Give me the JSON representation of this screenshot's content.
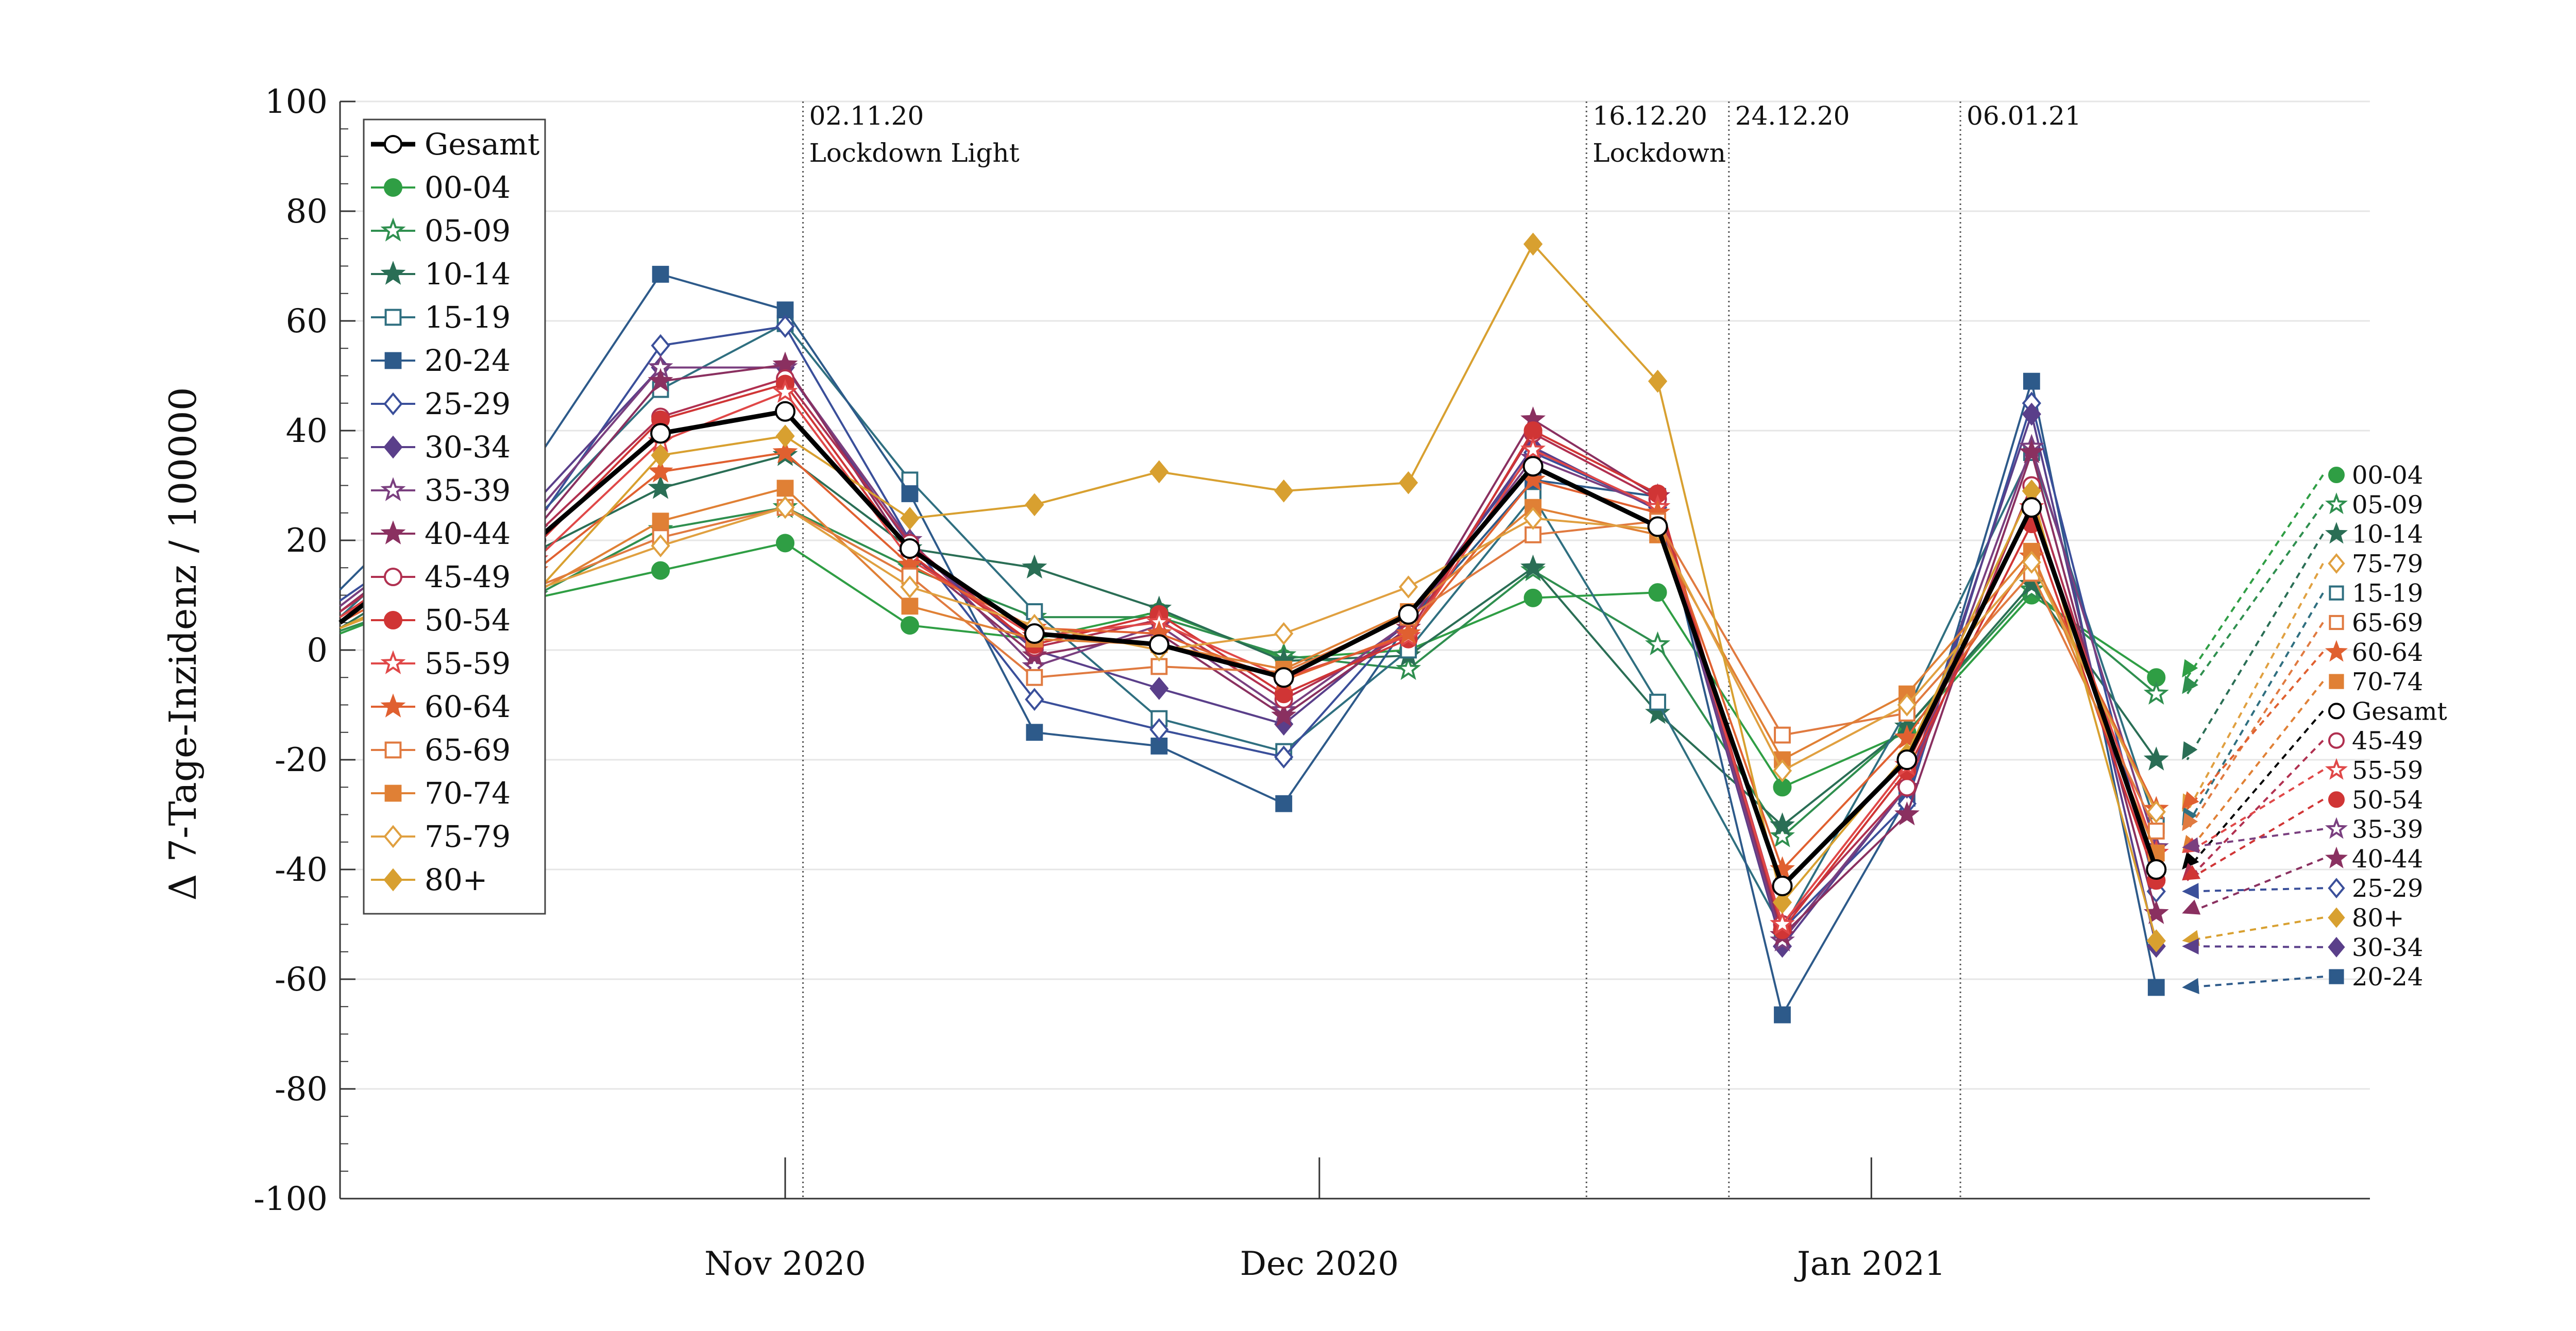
{
  "chart_data": {
    "type": "line",
    "title": "",
    "ylabel": "Δ 7-Tage-Inzidenz / 100000",
    "xlabel": "",
    "ylim": [
      -100,
      100
    ],
    "yticks": [
      -100,
      -80,
      -60,
      -40,
      -20,
      0,
      20,
      40,
      60,
      80,
      100
    ],
    "ytick_labels": [
      "-100",
      "-80",
      "-60",
      "-40",
      "-20",
      "0",
      "20",
      "40",
      "60",
      "80",
      "100"
    ],
    "xlim": [
      "2020-10-07",
      "2021-01-29"
    ],
    "xticks": [
      {
        "date": "2020-11-01",
        "label": "Nov 2020"
      },
      {
        "date": "2020-12-01",
        "label": "Dec 2020"
      },
      {
        "date": "2021-01-01",
        "label": "Jan 2021"
      }
    ],
    "grid": true,
    "legend_position": "top-left",
    "events": [
      {
        "date": "2020-11-02",
        "lines": [
          "02.11.20",
          "Lockdown Light"
        ]
      },
      {
        "date": "2020-12-16",
        "lines": [
          "16.12.20",
          "Lockdown"
        ]
      },
      {
        "date": "2020-12-24",
        "lines": [
          "24.12.20"
        ]
      },
      {
        "date": "2021-01-06",
        "lines": [
          "06.01.21"
        ]
      }
    ],
    "x": [
      "2020-10-18",
      "2020-10-25",
      "2020-11-01",
      "2020-11-08",
      "2020-11-15",
      "2020-11-22",
      "2020-11-29",
      "2020-12-06",
      "2020-12-13",
      "2020-12-20",
      "2020-12-27",
      "2021-01-03",
      "2021-01-10",
      "2021-01-17"
    ],
    "pre_x": [
      "2020-10-07",
      "2020-10-11"
    ],
    "series": [
      {
        "name": "Gesamt",
        "color": "#000000",
        "marker": "circle-open",
        "values": [
          20,
          39.5,
          43.5,
          18.5,
          3,
          1,
          -5,
          6.5,
          33.5,
          22.5,
          -43,
          -20,
          26,
          -40
        ],
        "pre": [
          5,
          15
        ]
      },
      {
        "name": "00-04",
        "color": "#2f9e44",
        "marker": "circle",
        "values": [
          9.5,
          14.5,
          19.5,
          4.5,
          2,
          7,
          -1.5,
          0,
          9.5,
          10.5,
          -25,
          -15,
          10,
          -5
        ],
        "pre": [
          3,
          8
        ]
      },
      {
        "name": "05-09",
        "color": "#2f8f4f",
        "marker": "star-open",
        "values": [
          10,
          22,
          26,
          15,
          6,
          6,
          -1,
          -3.5,
          14.5,
          1,
          -34,
          -14,
          11,
          -8
        ],
        "pre": [
          3.5,
          8
        ]
      },
      {
        "name": "10-14",
        "color": "#2a6e55",
        "marker": "star",
        "values": [
          18,
          29.5,
          35.5,
          18.5,
          15,
          7.5,
          -2,
          -1,
          15,
          -11.5,
          -32,
          -14,
          12,
          -20
        ],
        "pre": [
          4,
          12
        ]
      },
      {
        "name": "15-19",
        "color": "#2f6f80",
        "marker": "square-open",
        "values": [
          24,
          47.5,
          59.5,
          31,
          7,
          -12.5,
          -18.5,
          0,
          28,
          -9.5,
          -51,
          -11,
          36,
          -32
        ],
        "pre": [
          6,
          18
        ]
      },
      {
        "name": "20-24",
        "color": "#2d5a8a",
        "marker": "square",
        "values": [
          34.5,
          68.5,
          62,
          28.5,
          -15,
          -17.5,
          -28,
          5,
          31,
          28,
          -66.5,
          -27,
          49,
          -61.5
        ],
        "pre": [
          11,
          24
        ]
      },
      {
        "name": "25-29",
        "color": "#3a4f9a",
        "marker": "diamond-open",
        "values": [
          23,
          55.5,
          59,
          20,
          -9,
          -14.5,
          -19.5,
          6,
          36,
          26,
          -51,
          -28,
          45,
          -44
        ],
        "pre": [
          9,
          18
        ]
      },
      {
        "name": "30-34",
        "color": "#5a3f8a",
        "marker": "diamond",
        "values": [
          27,
          51.5,
          51.5,
          19,
          0,
          -7,
          -13.5,
          5,
          37,
          25.5,
          -54,
          -25,
          43,
          -54
        ],
        "pre": [
          8,
          18
        ]
      },
      {
        "name": "35-39",
        "color": "#7a3f7f",
        "marker": "star-open",
        "values": [
          25,
          51.5,
          51.5,
          20,
          -3,
          4.5,
          -11,
          5,
          35,
          26,
          -53,
          -25,
          37,
          -36
        ],
        "pre": [
          8,
          18
        ]
      },
      {
        "name": "40-44",
        "color": "#8a3060",
        "marker": "star",
        "values": [
          22,
          49,
          52,
          17.5,
          -1,
          3,
          -12,
          4,
          42,
          28,
          -52,
          -30,
          36,
          -48
        ],
        "pre": [
          7,
          17
        ]
      },
      {
        "name": "45-49",
        "color": "#b03050",
        "marker": "circle-open",
        "values": [
          21,
          42.5,
          49.5,
          19.5,
          0.5,
          5.5,
          -9,
          3,
          39.5,
          27.5,
          -50,
          -25,
          30,
          -42
        ],
        "pre": [
          7,
          16
        ]
      },
      {
        "name": "50-54",
        "color": "#d03535",
        "marker": "circle",
        "values": [
          19,
          42,
          48.5,
          17.5,
          1,
          6.5,
          -8,
          2,
          40,
          28.5,
          -51,
          -22,
          23,
          -42
        ],
        "pre": [
          6,
          15
        ]
      },
      {
        "name": "55-59",
        "color": "#e04848",
        "marker": "star-open",
        "values": [
          16.5,
          38,
          47,
          16.5,
          2.5,
          5,
          -5,
          2.5,
          36.5,
          26,
          -50,
          -21,
          26,
          -37
        ],
        "pre": [
          6,
          14
        ]
      },
      {
        "name": "60-64",
        "color": "#e06030",
        "marker": "star",
        "values": [
          14.5,
          32.5,
          36,
          15.5,
          4,
          3,
          -5.5,
          3,
          31,
          25,
          -40,
          -16,
          17,
          -29
        ],
        "pre": [
          5,
          12
        ]
      },
      {
        "name": "65-69",
        "color": "#e07a40",
        "marker": "square-open",
        "values": [
          11.5,
          20.5,
          26,
          13.5,
          -5,
          -3,
          -4,
          6,
          21,
          23.5,
          -15.5,
          -11.5,
          14,
          -33
        ],
        "pre": [
          4,
          10
        ]
      },
      {
        "name": "70-74",
        "color": "#e08035",
        "marker": "square",
        "values": [
          10.5,
          23.5,
          29.5,
          8,
          2,
          1,
          -3.5,
          7,
          26,
          21,
          -20,
          -8,
          18,
          -37
        ],
        "pre": [
          4,
          9
        ]
      },
      {
        "name": "75-79",
        "color": "#e0a040",
        "marker": "diamond-open",
        "values": [
          11,
          19,
          26,
          11.5,
          4.5,
          0,
          3,
          11.5,
          24,
          22,
          -22,
          -10,
          16,
          -29.5
        ],
        "pre": [
          4,
          9
        ]
      },
      {
        "name": "80+",
        "color": "#d8a030",
        "marker": "diamond",
        "values": [
          10.5,
          35.5,
          39,
          24,
          26.5,
          32.5,
          29,
          30.5,
          74,
          49,
          -46,
          -19,
          29,
          -53
        ],
        "pre": [
          4,
          10
        ]
      }
    ],
    "right_legend": [
      {
        "name": "00-04"
      },
      {
        "name": "05-09"
      },
      {
        "name": "10-14"
      },
      {
        "name": "75-79"
      },
      {
        "name": "15-19"
      },
      {
        "name": "65-69"
      },
      {
        "name": "60-64"
      },
      {
        "name": "70-74"
      },
      {
        "name": "Gesamt"
      },
      {
        "name": "45-49"
      },
      {
        "name": "55-59"
      },
      {
        "name": "50-54"
      },
      {
        "name": "35-39"
      },
      {
        "name": "40-44"
      },
      {
        "name": "25-29"
      },
      {
        "name": "80+"
      },
      {
        "name": "30-34"
      },
      {
        "name": "20-24"
      }
    ]
  }
}
